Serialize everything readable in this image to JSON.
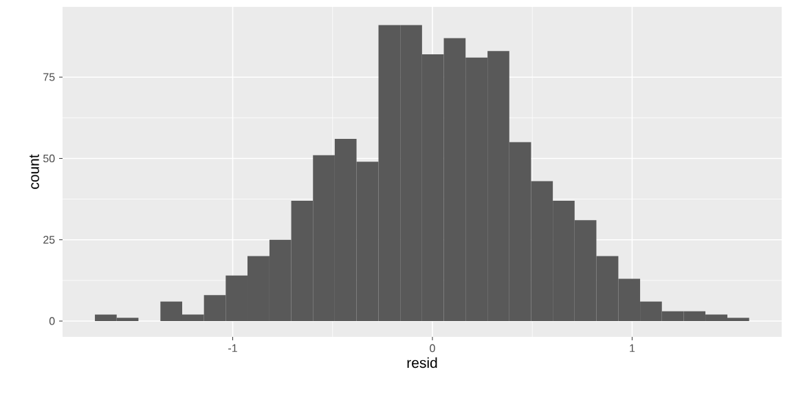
{
  "chart_data": {
    "type": "histogram",
    "xlabel": "resid",
    "ylabel": "count",
    "color": "#595959",
    "bins": [
      -1.69,
      -1.581,
      -1.472,
      -1.362,
      -1.253,
      -1.144,
      -1.035,
      -0.926,
      -0.816,
      -0.707,
      -0.598,
      -0.489,
      -0.38,
      -0.27,
      -0.161,
      -0.052,
      0.057,
      0.166,
      0.276,
      0.385,
      0.494,
      0.603,
      0.712,
      0.821,
      0.931,
      1.04,
      1.149,
      1.258,
      1.367,
      1.477,
      1.586
    ],
    "values": [
      2,
      1,
      0,
      6,
      2,
      8,
      14,
      20,
      25,
      37,
      51,
      56,
      49,
      91,
      91,
      82,
      87,
      81,
      83,
      55,
      43,
      37,
      31,
      20,
      13,
      6,
      3,
      3,
      2,
      1
    ],
    "xlim": [
      -1.852,
      1.749
    ],
    "ylim": [
      -4.86,
      96.6
    ],
    "xticks": [
      -1,
      0,
      1
    ],
    "yticks": [
      0,
      25,
      50,
      75
    ],
    "grid": true
  }
}
